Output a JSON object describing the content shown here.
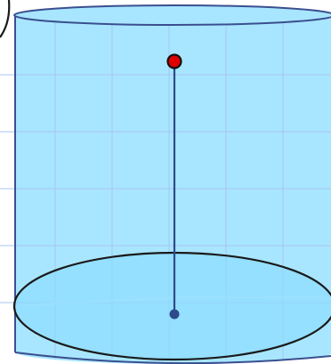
{
  "colors": {
    "background": "#ffffff",
    "grid_line": "#a9c4f0",
    "cylinder_fill": "#a8e6ff",
    "cylinder_stroke": "#3a4f8f",
    "base_fill": "#8fdcff",
    "base_highlight": "#c8f1ff",
    "base_outline": "#1a1a1a",
    "axis_line": "#2f4a8a",
    "top_point_fill": "#e00000",
    "top_point_stroke": "#111111",
    "base_point_fill": "#2f4a8a"
  },
  "elements": {
    "top_point": {
      "name": "top-point"
    },
    "base_center_point": {
      "name": "base-center-point"
    },
    "height_segment": {
      "name": "height-segment"
    }
  }
}
